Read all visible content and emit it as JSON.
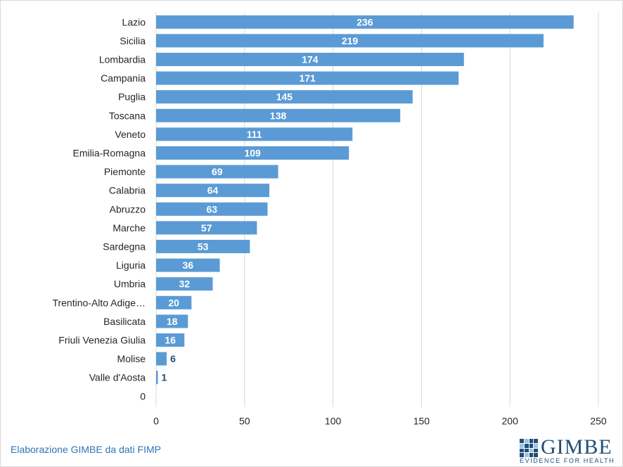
{
  "chart_data": {
    "type": "bar",
    "orientation": "horizontal",
    "categories": [
      "Lazio",
      "Sicilia",
      "Lombardia",
      "Campania",
      "Puglia",
      "Toscana",
      "Veneto",
      "Emilia-Romagna",
      "Piemonte",
      "Calabria",
      "Abruzzo",
      "Marche",
      "Sardegna",
      "Liguria",
      "Umbria",
      "Trentino-Alto Adige…",
      "Basilicata",
      "Friuli Venezia Giulia",
      "Molise",
      "Valle d'Aosta",
      "0"
    ],
    "values": [
      236,
      219,
      174,
      171,
      145,
      138,
      111,
      109,
      69,
      64,
      63,
      57,
      53,
      36,
      32,
      20,
      18,
      16,
      6,
      1,
      null
    ],
    "xlim": [
      0,
      250
    ],
    "xticks": [
      0,
      50,
      100,
      150,
      200,
      250
    ],
    "grid": true,
    "title": "",
    "xlabel": "",
    "ylabel": "",
    "colors": {
      "bar": "#5b9bd5",
      "grid": "#d9d9d9",
      "label_outside": "#1f4e79"
    }
  },
  "footer": {
    "source": "Elaborazione GIMBE da dati FIMP",
    "logo_text": "GIMBE",
    "logo_tagline": "EVIDENCE FOR HEALTH"
  }
}
